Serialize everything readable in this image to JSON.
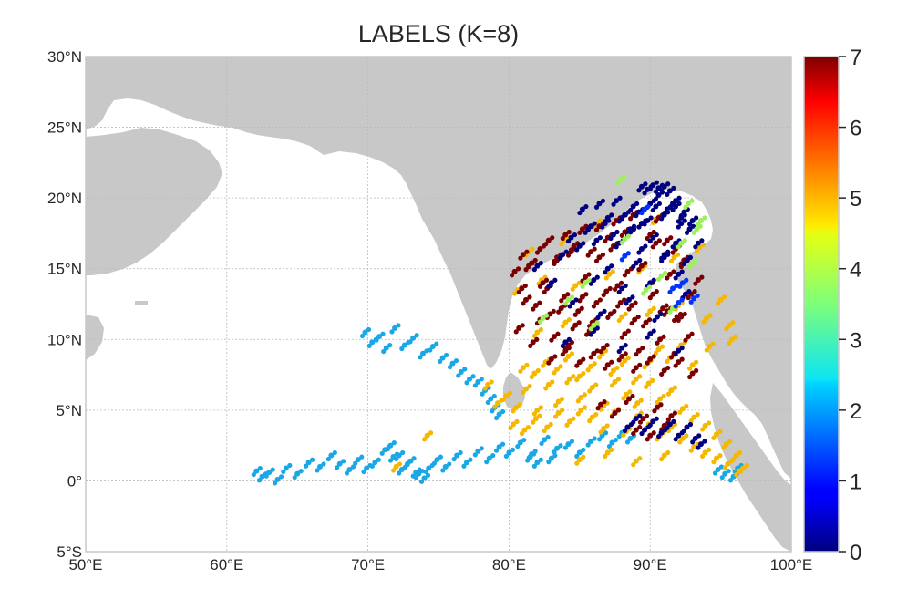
{
  "chart_data": {
    "type": "scatter",
    "title": "LABELS (K=8)",
    "xlim": [
      50,
      100
    ],
    "ylim": [
      -5,
      30
    ],
    "x_ticks": [
      50,
      60,
      70,
      80,
      90,
      100
    ],
    "x_tick_labels": [
      "50°E",
      "60°E",
      "70°E",
      "80°E",
      "90°E",
      "100°E"
    ],
    "y_ticks": [
      -5,
      0,
      5,
      10,
      15,
      20,
      25,
      30
    ],
    "y_tick_labels": [
      "5°S",
      "0°",
      "5°N",
      "10°N",
      "15°N",
      "20°N",
      "25°N",
      "30°N"
    ],
    "grid": true,
    "colorbar": {
      "colormap": "jet",
      "range": [
        0,
        7
      ],
      "ticks": [
        0,
        1,
        2,
        3,
        4,
        5,
        6,
        7
      ],
      "tick_labels": [
        "0",
        "1",
        "2",
        "3",
        "4",
        "5",
        "6",
        "7"
      ],
      "placement": "right"
    },
    "colors": {
      "land": "#c8c8c8",
      "ocean": "#ffffff",
      "label_0": "#000080",
      "label_2": "#1aa7e6",
      "label_4": "#9ef05a",
      "label_5": "#f5b800",
      "label_7": "#7a0000"
    },
    "clusters": [
      {
        "label": 2,
        "x": [
          62.1,
          62.5,
          63.0,
          63.6,
          64.2,
          65.0,
          65.8,
          66.6,
          67.4,
          68.0,
          68.7,
          69.3,
          69.9,
          70.5,
          71.2,
          71.8,
          72.4,
          73.0,
          73.6,
          74.3,
          74.9,
          75.5,
          76.3,
          77.0,
          77.8,
          78.6,
          79.3,
          80.0,
          80.8,
          81.6,
          82.5,
          83.4,
          84.2,
          85.0,
          85.8,
          86.6,
          87.3,
          88.0,
          88.6,
          69.8,
          70.3,
          70.8,
          71.3,
          71.9,
          72.6,
          73.2,
          73.9,
          74.6,
          75.3,
          76.0,
          76.6,
          77.2,
          77.8,
          78.3,
          78.7,
          79.0,
          79.3,
          71.6,
          72.2,
          72.8,
          73.4,
          74.0,
          81.5,
          82.0,
          83.0,
          94.8,
          95.3,
          95.9,
          96.2
        ],
        "y": [
          0.7,
          0.3,
          0.6,
          0.1,
          0.9,
          0.5,
          1.3,
          1.0,
          1.8,
          1.2,
          0.8,
          1.5,
          0.9,
          1.3,
          2.2,
          1.7,
          0.8,
          1.4,
          0.5,
          0.9,
          1.5,
          1.0,
          1.8,
          1.3,
          2.1,
          1.6,
          2.4,
          2.0,
          2.7,
          1.9,
          2.9,
          2.3,
          2.6,
          2.0,
          2.8,
          3.2,
          2.7,
          3.4,
          3.0,
          10.5,
          9.8,
          10.2,
          9.4,
          10.8,
          9.6,
          10.1,
          9.0,
          9.5,
          8.7,
          8.3,
          7.7,
          7.2,
          7.0,
          6.4,
          5.8,
          5.2,
          4.7,
          2.5,
          1.8,
          1.2,
          0.6,
          0.2,
          1.7,
          1.3,
          1.6,
          0.8,
          0.5,
          0.3,
          0.9
        ]
      },
      {
        "label": 5,
        "x": [
          79.8,
          80.5,
          81.2,
          82.0,
          82.8,
          83.5,
          84.3,
          85.1,
          85.9,
          86.7,
          87.5,
          88.3,
          89.1,
          89.9,
          90.7,
          91.5,
          92.3,
          93.1,
          93.9,
          94.7,
          95.4,
          96.1,
          96.6,
          81.0,
          81.8,
          82.6,
          83.4,
          84.2,
          85.0,
          85.8,
          86.6,
          87.4,
          88.2,
          89.0,
          89.8,
          90.6,
          91.4,
          92.2,
          93.0,
          80.3,
          81.1,
          81.9,
          82.7,
          83.5,
          84.3,
          85.1,
          85.9,
          86.7,
          87.5,
          88.3,
          89.1,
          89.9,
          90.7,
          91.5,
          92.3,
          93.1,
          93.9,
          94.7,
          95.5,
          96.3,
          82.0,
          84.0,
          86.0,
          88.0,
          90.0,
          92.0,
          94.0,
          95.0,
          95.6,
          94.2,
          95.8,
          80.6,
          82.3,
          84.7,
          87.1,
          89.4,
          91.7,
          93.5,
          90.4,
          88.6,
          86.2,
          83.9,
          81.4,
          85.0,
          87.0,
          89.0,
          91.0,
          78.5,
          79.2,
          74.2,
          72.0
        ],
        "y": [
          6.0,
          5.2,
          6.5,
          5.0,
          6.8,
          5.6,
          7.2,
          5.9,
          6.6,
          5.3,
          7.0,
          6.1,
          5.5,
          6.9,
          5.8,
          6.4,
          5.1,
          4.5,
          3.9,
          3.3,
          2.6,
          1.8,
          0.9,
          8.0,
          7.6,
          8.4,
          7.9,
          8.8,
          7.4,
          8.1,
          9.0,
          7.8,
          8.5,
          7.2,
          8.3,
          9.3,
          8.7,
          9.6,
          8.2,
          4.0,
          3.6,
          4.4,
          3.8,
          4.8,
          4.2,
          5.0,
          4.5,
          3.7,
          4.9,
          3.5,
          4.6,
          4.0,
          3.2,
          3.8,
          3.0,
          2.4,
          2.0,
          1.6,
          1.2,
          0.7,
          10.5,
          11.2,
          10.8,
          11.6,
          12.0,
          12.4,
          11.5,
          12.8,
          11.0,
          9.5,
          10.0,
          13.5,
          14.2,
          13.8,
          14.6,
          15.0,
          15.8,
          16.5,
          18.5,
          17.6,
          18.2,
          17.0,
          16.2,
          1.5,
          2.0,
          1.4,
          1.8,
          6.8,
          5.5,
          3.2,
          1.0
        ]
      },
      {
        "label": 7,
        "x": [
          80.4,
          80.9,
          81.4,
          81.9,
          82.4,
          82.9,
          83.4,
          83.9,
          84.4,
          84.9,
          85.4,
          85.9,
          86.4,
          86.9,
          87.4,
          87.9,
          88.4,
          88.9,
          89.4,
          89.9,
          90.4,
          90.9,
          91.4,
          91.9,
          92.4,
          92.9,
          93.4,
          80.7,
          81.2,
          81.7,
          82.2,
          82.7,
          83.2,
          83.7,
          84.2,
          84.7,
          85.2,
          85.7,
          86.2,
          86.7,
          87.2,
          87.7,
          88.2,
          88.7,
          89.2,
          89.7,
          90.2,
          90.7,
          91.2,
          91.7,
          92.2,
          92.7,
          81.0,
          81.6,
          82.2,
          82.8,
          83.4,
          84.0,
          84.6,
          85.2,
          85.8,
          86.4,
          87.0,
          87.6,
          88.2,
          88.8,
          89.4,
          90.0,
          90.6,
          91.2,
          91.8,
          92.4,
          83.0,
          84.0,
          85.0,
          86.0,
          87.0,
          88.0,
          89.0,
          90.0,
          91.0,
          92.0,
          93.0,
          86.5,
          87.5,
          88.5,
          89.5,
          90.5,
          91.5,
          89.0,
          90.0,
          91.0
        ],
        "y": [
          14.8,
          13.6,
          15.2,
          12.4,
          14.0,
          11.8,
          15.6,
          13.0,
          16.2,
          12.0,
          14.4,
          11.2,
          15.8,
          13.4,
          16.6,
          12.6,
          14.8,
          11.4,
          15.2,
          13.8,
          16.8,
          12.2,
          14.6,
          11.6,
          15.4,
          13.2,
          14.2,
          10.8,
          12.8,
          9.8,
          11.4,
          13.6,
          10.2,
          12.2,
          9.6,
          11.0,
          13.0,
          10.6,
          12.6,
          9.4,
          11.8,
          13.8,
          10.4,
          12.4,
          9.2,
          11.2,
          13.2,
          10.0,
          12.0,
          9.0,
          11.6,
          10.2,
          16.0,
          15.4,
          16.4,
          17.0,
          15.8,
          17.4,
          16.6,
          17.8,
          16.2,
          18.0,
          17.2,
          18.4,
          17.6,
          18.8,
          18.2,
          17.4,
          18.6,
          17.0,
          16.4,
          15.6,
          8.6,
          9.2,
          8.4,
          9.0,
          8.2,
          8.8,
          8.0,
          8.6,
          7.8,
          8.4,
          7.6,
          5.4,
          4.8,
          5.8,
          4.4,
          5.2,
          4.6,
          3.6,
          3.2,
          3.9
        ]
      },
      {
        "label": 0,
        "x": [
          83.8,
          84.4,
          85.0,
          85.6,
          86.2,
          86.8,
          87.4,
          88.0,
          88.6,
          89.2,
          89.8,
          90.4,
          91.0,
          91.6,
          92.2,
          92.8,
          93.4,
          85.2,
          85.8,
          86.4,
          87.0,
          87.6,
          88.2,
          88.8,
          89.4,
          90.0,
          90.6,
          91.2,
          91.8,
          92.4,
          93.0,
          89.4,
          89.8,
          90.2,
          90.6,
          91.0,
          91.4,
          91.8,
          92.2,
          86.0,
          87.0,
          88.0,
          89.0,
          90.0,
          91.0,
          92.0,
          82.0,
          83.0,
          84.5,
          86.5,
          88.5,
          90.5,
          92.5,
          84.0,
          86.0,
          88.0,
          90.0,
          92.0,
          88.4,
          89.0,
          89.6,
          90.2,
          90.8,
          91.4,
          92.0,
          92.6,
          93.2,
          93.6,
          87.8,
          88.6,
          89.4,
          90.2,
          91.0,
          91.8,
          92.6
        ],
        "y": [
          16.0,
          17.2,
          16.6,
          17.8,
          17.0,
          18.2,
          17.4,
          18.6,
          17.8,
          19.0,
          18.4,
          19.4,
          18.8,
          19.6,
          18.6,
          17.8,
          16.8,
          19.2,
          18.0,
          19.6,
          18.6,
          19.8,
          18.8,
          19.4,
          18.2,
          19.6,
          20.2,
          19.2,
          19.8,
          19.0,
          18.4,
          20.8,
          20.6,
          20.9,
          20.7,
          20.8,
          20.5,
          19.4,
          18.2,
          14.2,
          15.0,
          13.6,
          15.4,
          14.0,
          15.8,
          14.6,
          15.2,
          14.0,
          12.6,
          11.8,
          12.8,
          11.6,
          13.2,
          9.8,
          10.6,
          9.4,
          10.4,
          9.2,
          3.8,
          4.4,
          3.6,
          4.2,
          3.4,
          4.0,
          3.2,
          3.8,
          3.0,
          2.6,
          16.8,
          17.6,
          16.4,
          17.2,
          16.0,
          16.8,
          15.6
        ]
      },
      {
        "label": 4,
        "x": [
          87.9,
          92.7,
          93.3,
          93.0,
          88.2,
          89.7,
          91.6,
          84.2,
          86.0,
          90.8,
          92.2,
          93.6,
          82.4,
          85.4
        ],
        "y": [
          21.3,
          19.6,
          17.8,
          15.4,
          17.1,
          13.5,
          12.2,
          12.8,
          11.0,
          14.5,
          16.8,
          18.4,
          11.5,
          14.0
        ]
      },
      {
        "label": 1,
        "x": [
          91.6,
          92.0,
          92.3,
          93.1,
          88.2,
          89.6
        ],
        "y": [
          13.6,
          12.6,
          14.0,
          12.9,
          15.9,
          19.2
        ]
      }
    ]
  }
}
